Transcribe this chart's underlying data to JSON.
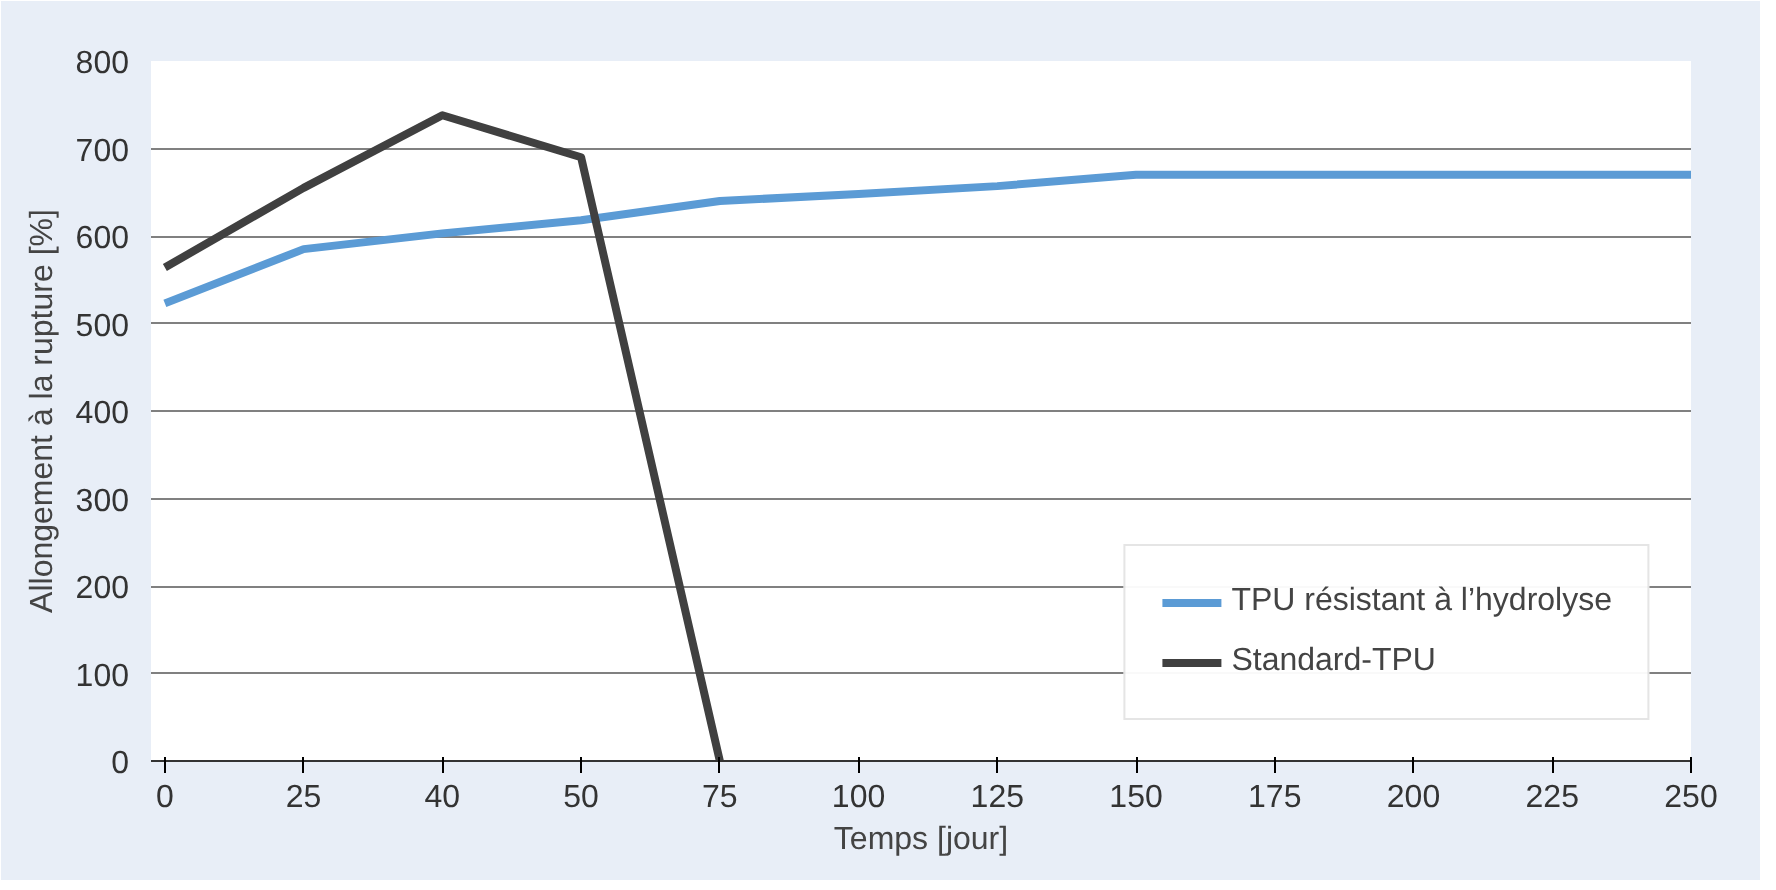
{
  "chart_data": {
    "type": "line",
    "xlabel": "Temps [jour]",
    "ylabel": "Allongement à la rupture [%]",
    "categories": [
      "0",
      "25",
      "40",
      "50",
      "75",
      "100",
      "125",
      "150",
      "175",
      "200",
      "225",
      "250"
    ],
    "ylim": [
      0,
      800
    ],
    "yticks": [
      0,
      100,
      200,
      300,
      400,
      500,
      600,
      700,
      800
    ],
    "grid": "y",
    "legend": "bottom right",
    "marker": "none",
    "line_style": "solid",
    "series": [
      {
        "name": "TPU résistant à l’hydrolyse",
        "color": "#5b9bd5",
        "values": [
          523,
          585,
          603,
          618,
          640,
          648,
          657,
          670,
          670,
          670,
          670,
          670
        ]
      },
      {
        "name": "Standard-TPU",
        "color": "#404040",
        "values": [
          564,
          655,
          738,
          690,
          0,
          null,
          null,
          null,
          null,
          null,
          null,
          null
        ]
      }
    ]
  }
}
